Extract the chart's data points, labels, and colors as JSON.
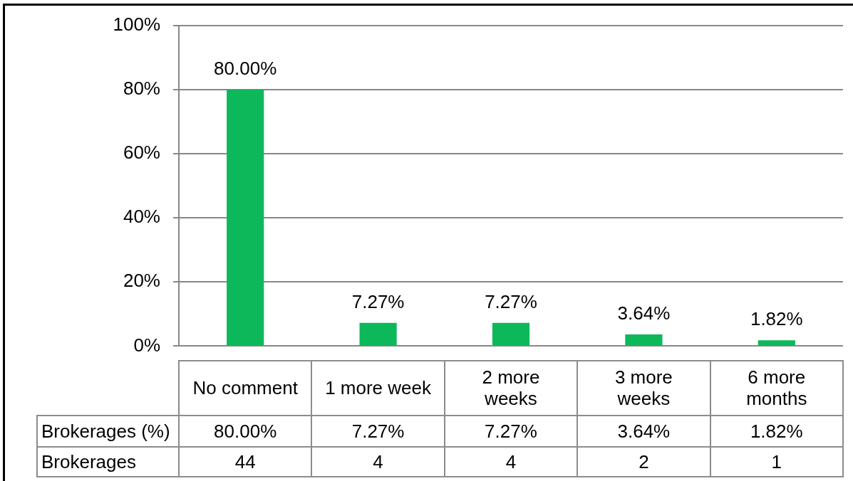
{
  "chart_data": {
    "type": "bar",
    "categories": [
      "No comment",
      "1 more week",
      "2 more weeks",
      "3 more weeks",
      "6 more months"
    ],
    "series": [
      {
        "name": "Brokerages (%)",
        "color": "#0cb85a",
        "values": [
          80,
          7.27,
          7.27,
          3.64,
          1.82
        ],
        "value_labels": [
          "80.00%",
          "7.27%",
          "7.27%",
          "3.64%",
          "1.82%"
        ]
      }
    ],
    "ylim": [
      0,
      100
    ],
    "yticks": [
      {
        "value": 0,
        "label": "0%"
      },
      {
        "value": 20,
        "label": "20%"
      },
      {
        "value": 40,
        "label": "40%"
      },
      {
        "value": 60,
        "label": "60%"
      },
      {
        "value": 80,
        "label": "80%"
      },
      {
        "value": 100,
        "label": "100%"
      }
    ],
    "annotations": [
      "Brokerages",
      "44",
      "4",
      "4",
      "2",
      "1"
    ],
    "grid": "y",
    "legend": false
  }
}
